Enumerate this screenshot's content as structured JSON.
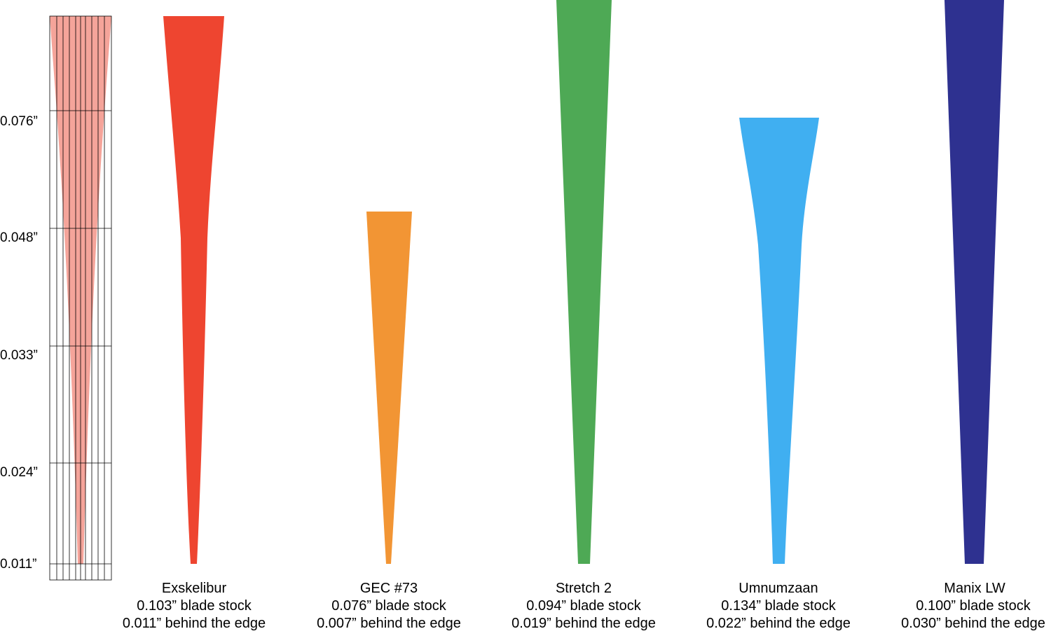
{
  "scale": {
    "tick_labels": [
      "0.076”",
      "0.048”",
      "0.033”",
      "0.024”",
      "0.011”"
    ],
    "profile_color": "#F5A49A"
  },
  "blades": [
    {
      "name": "Exskelibur",
      "stock_text": "0.103” blade stock",
      "edge_text": "0.011” behind the edge",
      "color": "#EE4530",
      "shape": "convex-then-taper"
    },
    {
      "name": "GEC #73",
      "stock_text": "0.076” blade stock",
      "edge_text": "0.007” behind the edge",
      "color": "#F29534",
      "shape": "flat-taper"
    },
    {
      "name": "Stretch 2",
      "stock_text": "0.094” blade stock",
      "edge_text": "0.019” behind the edge",
      "color": "#4EA955",
      "shape": "flat-taper"
    },
    {
      "name": "Umnumzaan",
      "stock_text": "0.134” blade stock",
      "edge_text": "0.022” behind the edge",
      "color": "#40AFF1",
      "shape": "convex-then-taper"
    },
    {
      "name": "Manix LW",
      "stock_text": "0.100” blade stock",
      "edge_text": "0.030” behind the edge",
      "color": "#2E3190",
      "shape": "flat-taper"
    }
  ]
}
